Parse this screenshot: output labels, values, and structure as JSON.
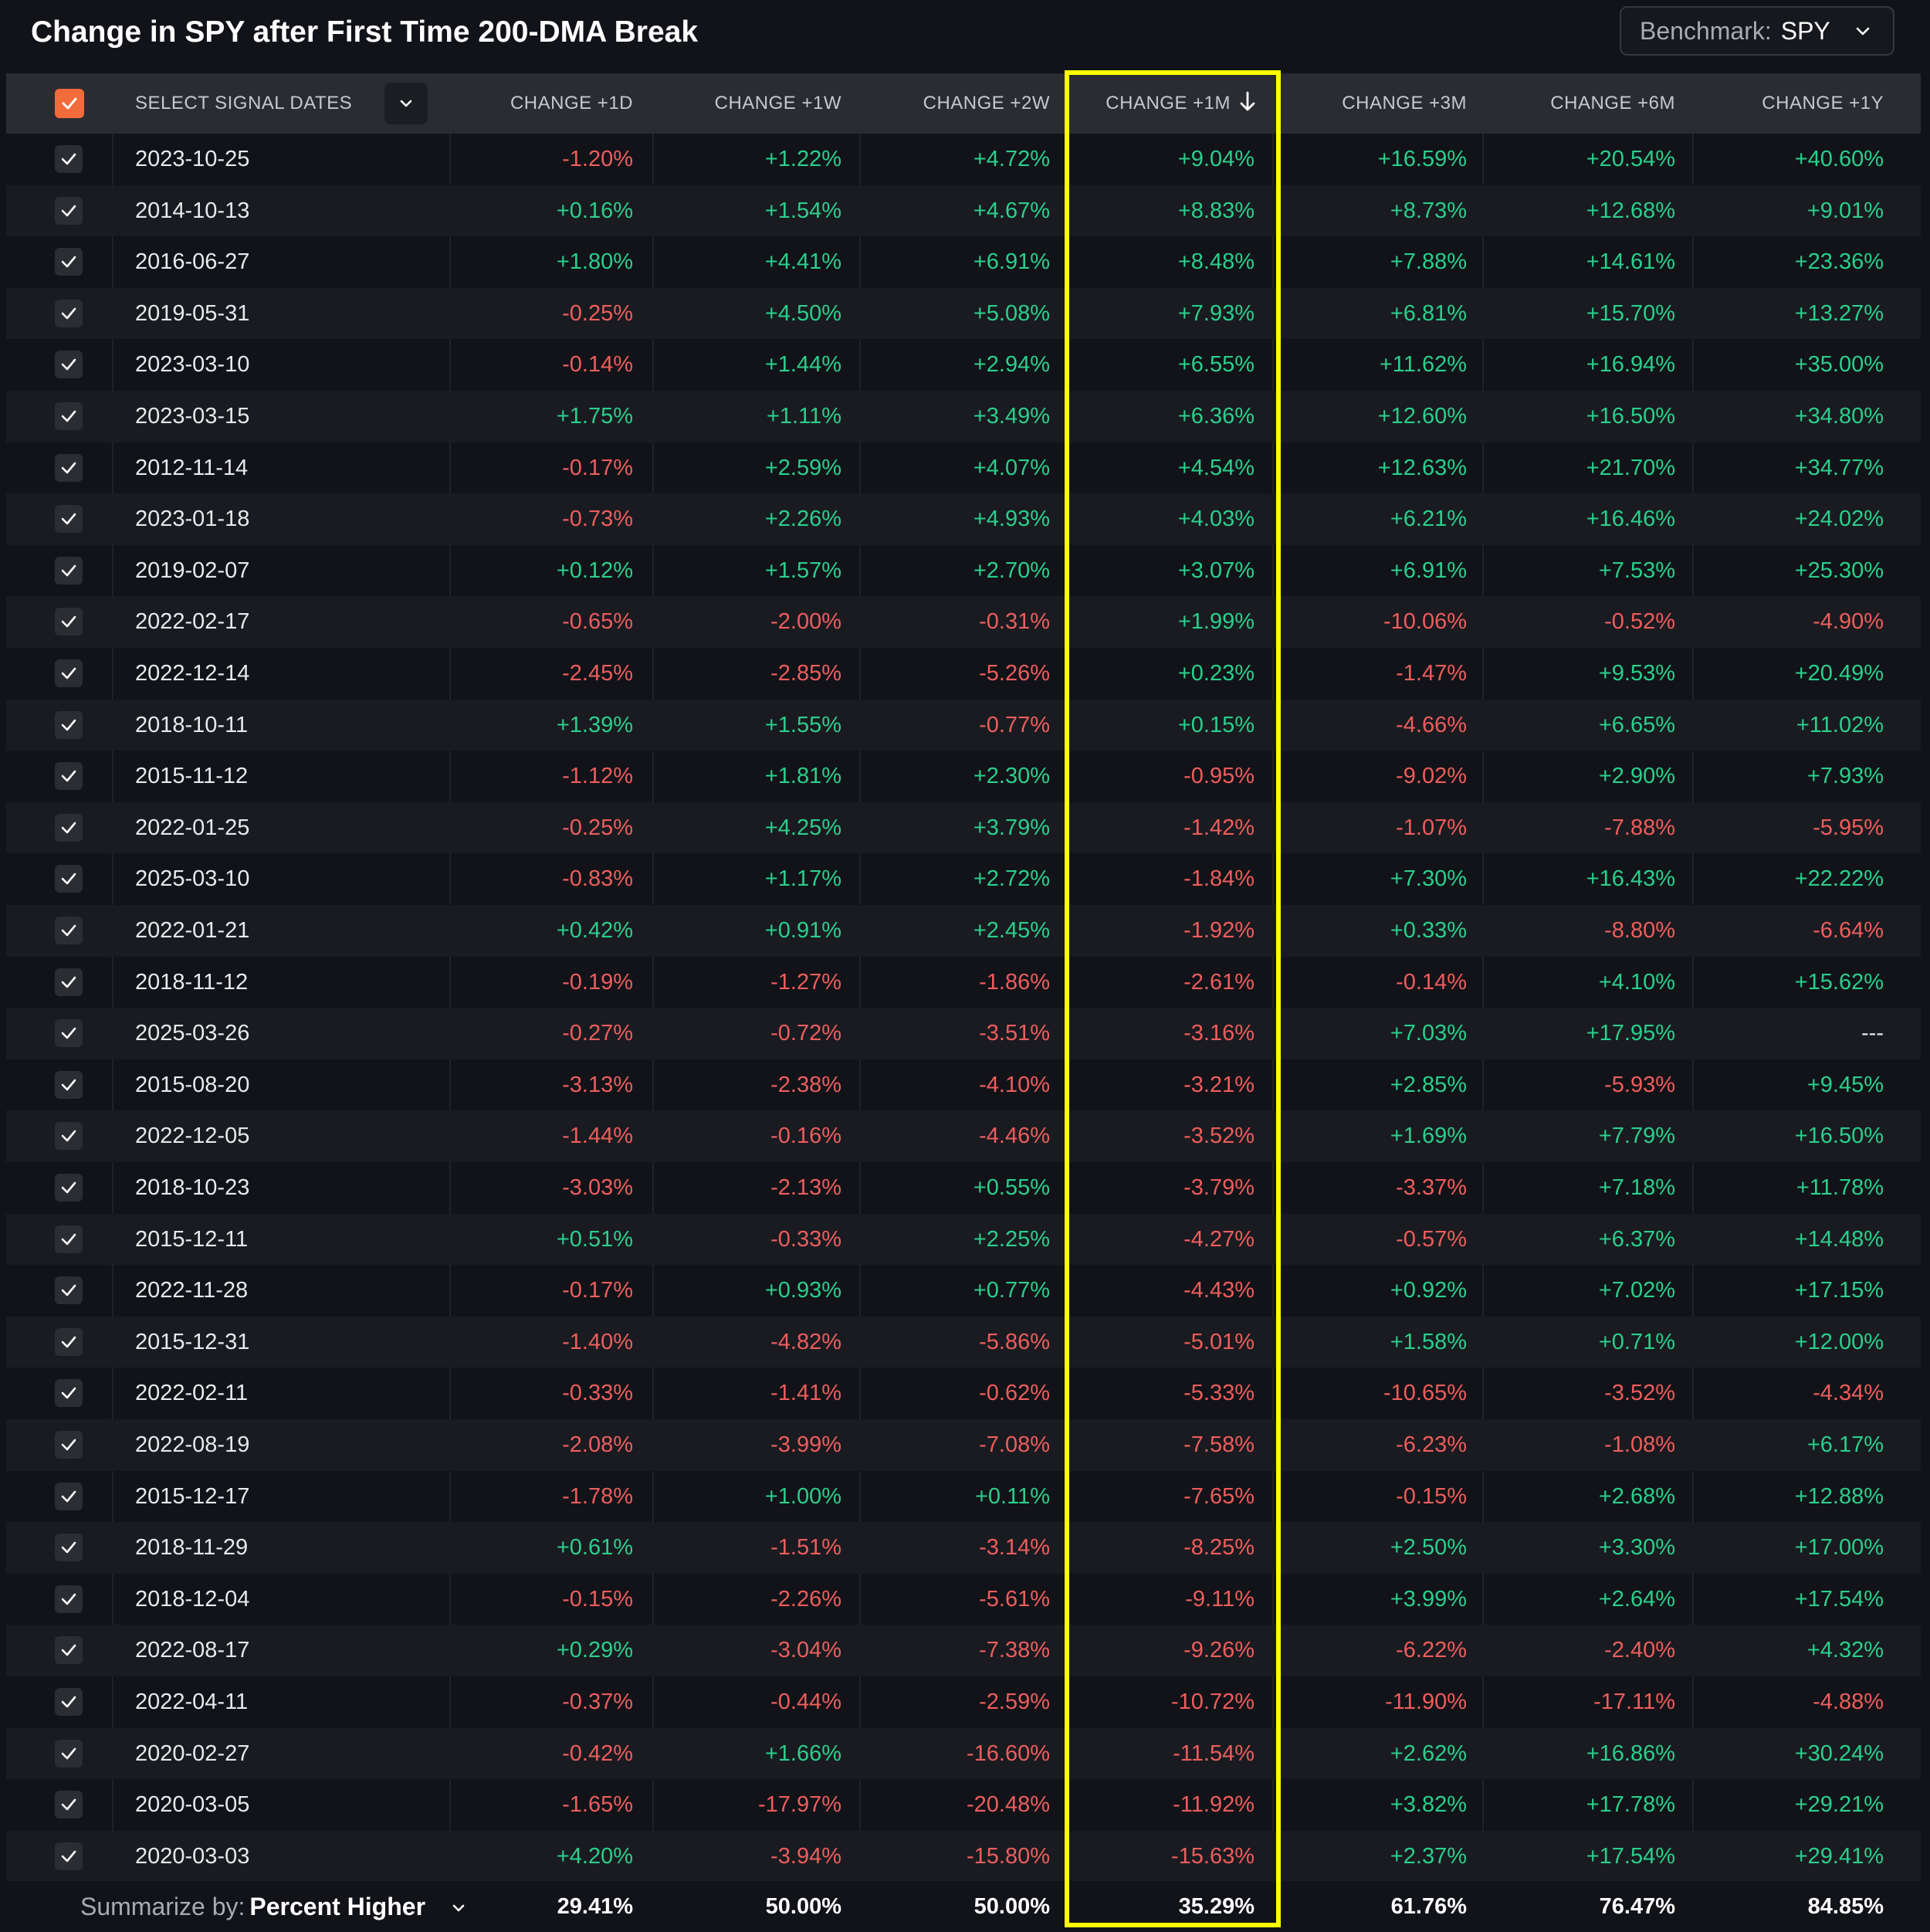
{
  "title": "Change in SPY after First Time 200-DMA Break",
  "benchmark": {
    "label": "Benchmark:",
    "value": "SPY"
  },
  "header": {
    "select_label": "SELECT SIGNAL DATES",
    "columns": [
      "CHANGE +1D",
      "CHANGE +1W",
      "CHANGE +2W",
      "CHANGE +1M",
      "CHANGE +3M",
      "CHANGE +6M",
      "CHANGE +1Y"
    ],
    "sorted_column": "CHANGE +1M"
  },
  "colors": {
    "positive": "#2bcf8c",
    "negative": "#ee5d5d",
    "accent": "#f26b3a",
    "highlight": "#ffff00"
  },
  "rows": [
    {
      "date": "2023-10-25",
      "values": [
        "-1.20%",
        "+1.22%",
        "+4.72%",
        "+9.04%",
        "+16.59%",
        "+20.54%",
        "+40.60%"
      ]
    },
    {
      "date": "2014-10-13",
      "values": [
        "+0.16%",
        "+1.54%",
        "+4.67%",
        "+8.83%",
        "+8.73%",
        "+12.68%",
        "+9.01%"
      ]
    },
    {
      "date": "2016-06-27",
      "values": [
        "+1.80%",
        "+4.41%",
        "+6.91%",
        "+8.48%",
        "+7.88%",
        "+14.61%",
        "+23.36%"
      ]
    },
    {
      "date": "2019-05-31",
      "values": [
        "-0.25%",
        "+4.50%",
        "+5.08%",
        "+7.93%",
        "+6.81%",
        "+15.70%",
        "+13.27%"
      ]
    },
    {
      "date": "2023-03-10",
      "values": [
        "-0.14%",
        "+1.44%",
        "+2.94%",
        "+6.55%",
        "+11.62%",
        "+16.94%",
        "+35.00%"
      ]
    },
    {
      "date": "2023-03-15",
      "values": [
        "+1.75%",
        "+1.11%",
        "+3.49%",
        "+6.36%",
        "+12.60%",
        "+16.50%",
        "+34.80%"
      ]
    },
    {
      "date": "2012-11-14",
      "values": [
        "-0.17%",
        "+2.59%",
        "+4.07%",
        "+4.54%",
        "+12.63%",
        "+21.70%",
        "+34.77%"
      ]
    },
    {
      "date": "2023-01-18",
      "values": [
        "-0.73%",
        "+2.26%",
        "+4.93%",
        "+4.03%",
        "+6.21%",
        "+16.46%",
        "+24.02%"
      ]
    },
    {
      "date": "2019-02-07",
      "values": [
        "+0.12%",
        "+1.57%",
        "+2.70%",
        "+3.07%",
        "+6.91%",
        "+7.53%",
        "+25.30%"
      ]
    },
    {
      "date": "2022-02-17",
      "values": [
        "-0.65%",
        "-2.00%",
        "-0.31%",
        "+1.99%",
        "-10.06%",
        "-0.52%",
        "-4.90%"
      ]
    },
    {
      "date": "2022-12-14",
      "values": [
        "-2.45%",
        "-2.85%",
        "-5.26%",
        "+0.23%",
        "-1.47%",
        "+9.53%",
        "+20.49%"
      ]
    },
    {
      "date": "2018-10-11",
      "values": [
        "+1.39%",
        "+1.55%",
        "-0.77%",
        "+0.15%",
        "-4.66%",
        "+6.65%",
        "+11.02%"
      ]
    },
    {
      "date": "2015-11-12",
      "values": [
        "-1.12%",
        "+1.81%",
        "+2.30%",
        "-0.95%",
        "-9.02%",
        "+2.90%",
        "+7.93%"
      ]
    },
    {
      "date": "2022-01-25",
      "values": [
        "-0.25%",
        "+4.25%",
        "+3.79%",
        "-1.42%",
        "-1.07%",
        "-7.88%",
        "-5.95%"
      ]
    },
    {
      "date": "2025-03-10",
      "values": [
        "-0.83%",
        "+1.17%",
        "+2.72%",
        "-1.84%",
        "+7.30%",
        "+16.43%",
        "+22.22%"
      ]
    },
    {
      "date": "2022-01-21",
      "values": [
        "+0.42%",
        "+0.91%",
        "+2.45%",
        "-1.92%",
        "+0.33%",
        "-8.80%",
        "-6.64%"
      ]
    },
    {
      "date": "2018-11-12",
      "values": [
        "-0.19%",
        "-1.27%",
        "-1.86%",
        "-2.61%",
        "-0.14%",
        "+4.10%",
        "+15.62%"
      ]
    },
    {
      "date": "2025-03-26",
      "values": [
        "-0.27%",
        "-0.72%",
        "-3.51%",
        "-3.16%",
        "+7.03%",
        "+17.95%",
        "---"
      ]
    },
    {
      "date": "2015-08-20",
      "values": [
        "-3.13%",
        "-2.38%",
        "-4.10%",
        "-3.21%",
        "+2.85%",
        "-5.93%",
        "+9.45%"
      ]
    },
    {
      "date": "2022-12-05",
      "values": [
        "-1.44%",
        "-0.16%",
        "-4.46%",
        "-3.52%",
        "+1.69%",
        "+7.79%",
        "+16.50%"
      ]
    },
    {
      "date": "2018-10-23",
      "values": [
        "-3.03%",
        "-2.13%",
        "+0.55%",
        "-3.79%",
        "-3.37%",
        "+7.18%",
        "+11.78%"
      ]
    },
    {
      "date": "2015-12-11",
      "values": [
        "+0.51%",
        "-0.33%",
        "+2.25%",
        "-4.27%",
        "-0.57%",
        "+6.37%",
        "+14.48%"
      ]
    },
    {
      "date": "2022-11-28",
      "values": [
        "-0.17%",
        "+0.93%",
        "+0.77%",
        "-4.43%",
        "+0.92%",
        "+7.02%",
        "+17.15%"
      ]
    },
    {
      "date": "2015-12-31",
      "values": [
        "-1.40%",
        "-4.82%",
        "-5.86%",
        "-5.01%",
        "+1.58%",
        "+0.71%",
        "+12.00%"
      ]
    },
    {
      "date": "2022-02-11",
      "values": [
        "-0.33%",
        "-1.41%",
        "-0.62%",
        "-5.33%",
        "-10.65%",
        "-3.52%",
        "-4.34%"
      ]
    },
    {
      "date": "2022-08-19",
      "values": [
        "-2.08%",
        "-3.99%",
        "-7.08%",
        "-7.58%",
        "-6.23%",
        "-1.08%",
        "+6.17%"
      ]
    },
    {
      "date": "2015-12-17",
      "values": [
        "-1.78%",
        "+1.00%",
        "+0.11%",
        "-7.65%",
        "-0.15%",
        "+2.68%",
        "+12.88%"
      ]
    },
    {
      "date": "2018-11-29",
      "values": [
        "+0.61%",
        "-1.51%",
        "-3.14%",
        "-8.25%",
        "+2.50%",
        "+3.30%",
        "+17.00%"
      ]
    },
    {
      "date": "2018-12-04",
      "values": [
        "-0.15%",
        "-2.26%",
        "-5.61%",
        "-9.11%",
        "+3.99%",
        "+2.64%",
        "+17.54%"
      ]
    },
    {
      "date": "2022-08-17",
      "values": [
        "+0.29%",
        "-3.04%",
        "-7.38%",
        "-9.26%",
        "-6.22%",
        "-2.40%",
        "+4.32%"
      ]
    },
    {
      "date": "2022-04-11",
      "values": [
        "-0.37%",
        "-0.44%",
        "-2.59%",
        "-10.72%",
        "-11.90%",
        "-17.11%",
        "-4.88%"
      ]
    },
    {
      "date": "2020-02-27",
      "values": [
        "-0.42%",
        "+1.66%",
        "-16.60%",
        "-11.54%",
        "+2.62%",
        "+16.86%",
        "+30.24%"
      ]
    },
    {
      "date": "2020-03-05",
      "values": [
        "-1.65%",
        "-17.97%",
        "-20.48%",
        "-11.92%",
        "+3.82%",
        "+17.78%",
        "+29.21%"
      ]
    },
    {
      "date": "2020-03-03",
      "values": [
        "+4.20%",
        "-3.94%",
        "-15.80%",
        "-15.63%",
        "+2.37%",
        "+17.54%",
        "+29.41%"
      ]
    }
  ],
  "summary": {
    "label": "Summarize by:",
    "mode": "Percent Higher",
    "values": [
      "29.41%",
      "50.00%",
      "50.00%",
      "35.29%",
      "61.76%",
      "76.47%",
      "84.85%"
    ]
  }
}
